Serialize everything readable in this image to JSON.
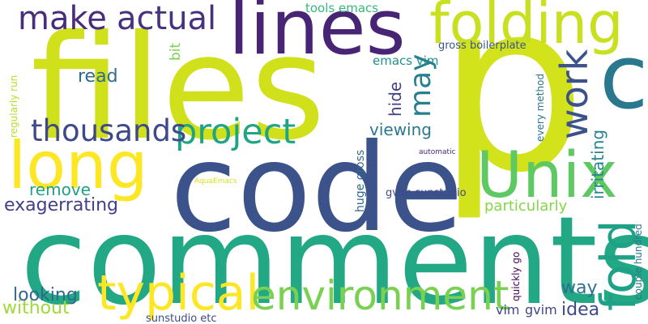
{
  "words": [
    {
      "text": "p",
      "color": "#d2e21b"
    },
    {
      "text": "files",
      "color": "#d0e11c"
    },
    {
      "text": "code",
      "color": "#3b528b"
    },
    {
      "text": "comments",
      "color": "#22a884"
    },
    {
      "text": "lines",
      "color": "#482475"
    },
    {
      "text": "long",
      "color": "#fde725"
    },
    {
      "text": "Unix",
      "color": "#5ec962"
    },
    {
      "text": "c",
      "color": "#2a788e"
    },
    {
      "text": "folding",
      "color": "#c8e020"
    },
    {
      "text": "typical",
      "color": "#fde725"
    },
    {
      "text": "environment",
      "color": "#7ad151"
    },
    {
      "text": "project",
      "color": "#20a486"
    },
    {
      "text": "thousands",
      "color": "#3e4989"
    },
    {
      "text": "fold",
      "color": "#1fa187"
    },
    {
      "text": "work",
      "color": "#3b528b"
    },
    {
      "text": "make",
      "color": "#472d7b"
    },
    {
      "text": "actual",
      "color": "#46337f"
    },
    {
      "text": "may",
      "color": "#27808e"
    },
    {
      "text": "exagerrating",
      "color": "#424086"
    },
    {
      "text": "looking",
      "color": "#31688e"
    },
    {
      "text": "without",
      "color": "#a0da39"
    },
    {
      "text": "way",
      "color": "#2d708e"
    },
    {
      "text": "idea",
      "color": "#3e4989"
    },
    {
      "text": "remove",
      "color": "#1fa187"
    },
    {
      "text": "viewing",
      "color": "#2a788e"
    },
    {
      "text": "particularly",
      "color": "#86d549"
    },
    {
      "text": "irritating",
      "color": "#25858e"
    },
    {
      "text": "read",
      "color": "#2f6c8e"
    },
    {
      "text": "hide",
      "color": "#433e85"
    },
    {
      "text": "vim",
      "color": "#3f4788"
    },
    {
      "text": "gvim",
      "color": "#3f4788"
    },
    {
      "text": "emacs vim",
      "color": "#21918c"
    },
    {
      "text": "tools emacs",
      "color": "#35b779"
    },
    {
      "text": "gross boilerplate",
      "color": "#3a548c"
    },
    {
      "text": "gvim sunstudio",
      "color": "#3e4989"
    },
    {
      "text": "bit",
      "color": "#7ad151"
    },
    {
      "text": "huge gross",
      "color": "#31688e"
    },
    {
      "text": "every method",
      "color": "#2c728e"
    },
    {
      "text": "regularly run",
      "color": "#b5de2b"
    },
    {
      "text": "sunstudio etc",
      "color": "#3e4989"
    },
    {
      "text": "quickly go",
      "color": "#440154"
    },
    {
      "text": "couple hundred",
      "color": "#2a788e"
    },
    {
      "text": "automatic",
      "color": "#482878"
    },
    {
      "text": "AquaEmacs",
      "color": "#d8e219"
    }
  ]
}
